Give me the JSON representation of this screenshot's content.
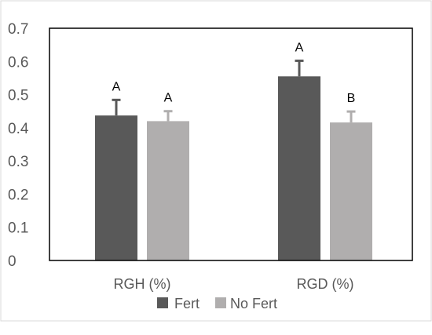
{
  "chart_data": {
    "type": "bar",
    "categories": [
      "RGH (%)",
      "RGD (%)"
    ],
    "series": [
      {
        "name": "Fert",
        "values": [
          0.437,
          0.555
        ],
        "errors": [
          0.047,
          0.047
        ],
        "letters": [
          "A",
          "A"
        ],
        "color": "#595959"
      },
      {
        "name": "No Fert",
        "values": [
          0.42,
          0.416
        ],
        "errors": [
          0.03,
          0.033
        ],
        "letters": [
          "A",
          "B"
        ],
        "color": "#b0aeae"
      }
    ],
    "yticks": [
      "0",
      "0.1",
      "0.2",
      "0.3",
      "0.4",
      "0.5",
      "0.6",
      "0.7"
    ],
    "ylim": [
      0,
      0.7
    ],
    "grid": false,
    "legend_position": "bottom"
  }
}
